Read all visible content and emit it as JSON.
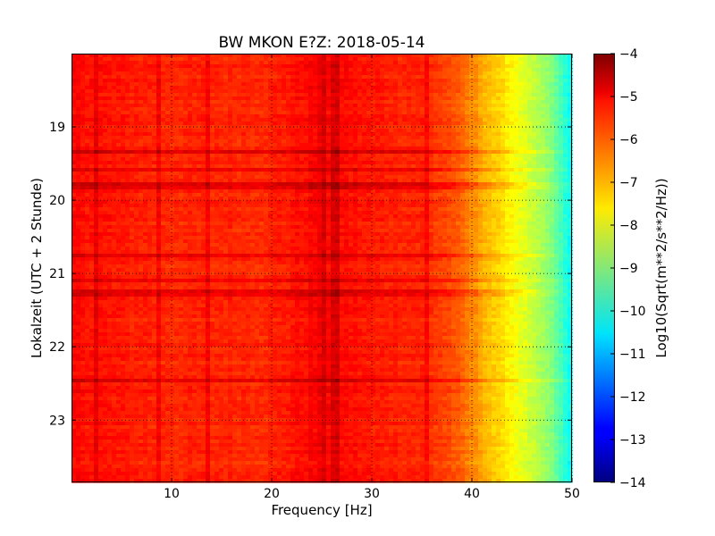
{
  "chart_data": {
    "type": "heatmap",
    "title": "BW MKON E?Z: 2018-05-14",
    "xlabel": "Frequency [Hz]",
    "ylabel": "Lokalzeit (UTC + 2 Stunde)",
    "xlim": [
      0,
      50
    ],
    "ylim": [
      18.0,
      23.85
    ],
    "y_inverted": true,
    "x_ticks": [
      10,
      20,
      30,
      40,
      50
    ],
    "x_tick_labels": [
      "10",
      "20",
      "30",
      "40",
      "50"
    ],
    "y_ticks": [
      19,
      20,
      21,
      22,
      23
    ],
    "y_tick_labels": [
      "19",
      "20",
      "21",
      "22",
      "23"
    ],
    "grid": true,
    "colormap": "jet",
    "colorbar": {
      "label": "Log10(Sqrt(m**2/s**2/Hz))",
      "min": -14,
      "max": -4,
      "ticks": [
        -4,
        -5,
        -6,
        -7,
        -8,
        -9,
        -10,
        -11,
        -12,
        -13,
        -14
      ],
      "tick_labels": [
        "−4",
        "−5",
        "−6",
        "−7",
        "−8",
        "−9",
        "−10",
        "−11",
        "−12",
        "−13",
        "−14"
      ]
    },
    "spectral_profile": {
      "frequency_hz": [
        0,
        5,
        10,
        15,
        20,
        25,
        30,
        35,
        38,
        40,
        42,
        44,
        46,
        48,
        50
      ],
      "log_amplitude": [
        -5.3,
        -5.5,
        -5.6,
        -5.6,
        -5.6,
        -5.2,
        -5.5,
        -5.6,
        -6.0,
        -6.6,
        -7.2,
        -7.7,
        -8.3,
        -9.0,
        -10.3
      ]
    },
    "strong_rows_hours": [
      19.35,
      19.6,
      19.8,
      20.75,
      21.08,
      21.27,
      22.45
    ]
  }
}
